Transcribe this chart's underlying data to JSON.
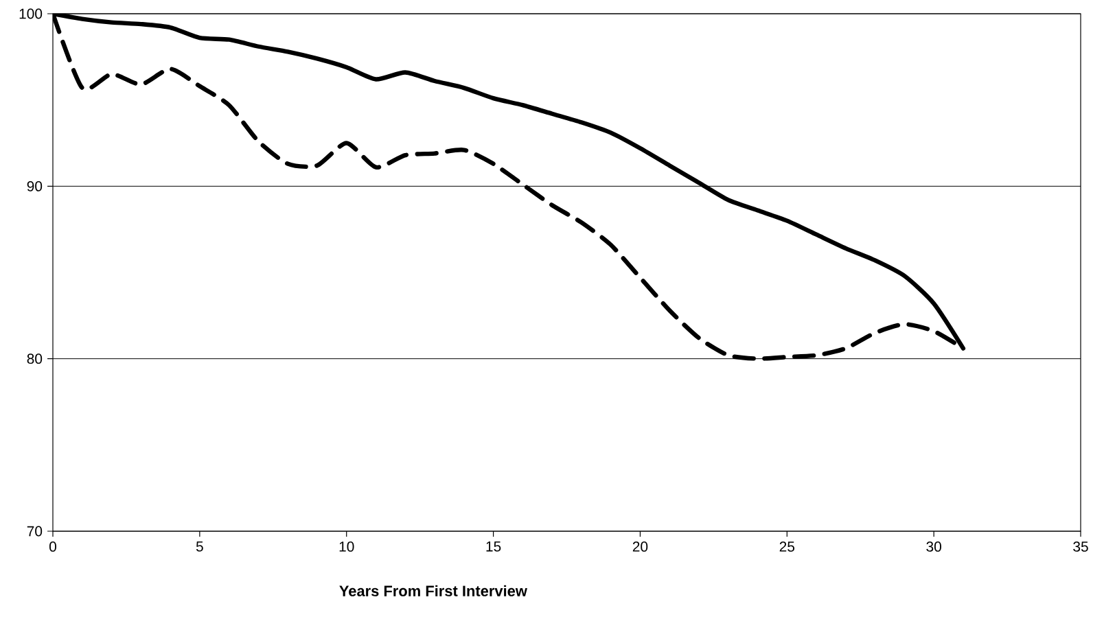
{
  "chart_data": {
    "type": "line",
    "xlabel": "Years From First Interview",
    "x": [
      0,
      1,
      2,
      3,
      4,
      5,
      6,
      7,
      8,
      9,
      10,
      11,
      12,
      13,
      14,
      15,
      16,
      17,
      18,
      19,
      20,
      21,
      22,
      23,
      24,
      25,
      26,
      27,
      28,
      29,
      30,
      31
    ],
    "series": [
      {
        "color": "#000000",
        "line_style": "solid",
        "values": [
          100,
          99.7,
          99.5,
          99.4,
          99.2,
          98.6,
          98.5,
          98.1,
          97.8,
          97.4,
          96.9,
          96.2,
          96.6,
          96.1,
          95.7,
          95.1,
          94.7,
          94.2,
          93.7,
          93.1,
          92.2,
          91.2,
          90.2,
          89.2,
          88.6,
          88.0,
          87.2,
          86.4,
          85.7,
          84.8,
          83.2,
          80.6
        ]
      },
      {
        "color": "#000000",
        "line_style": "dashed",
        "values": [
          100,
          95.7,
          96.5,
          95.9,
          96.8,
          95.8,
          94.7,
          92.6,
          91.3,
          91.2,
          92.5,
          91.1,
          91.8,
          91.9,
          92.1,
          91.3,
          90.1,
          88.9,
          87.9,
          86.6,
          84.7,
          82.8,
          81.2,
          80.2,
          80.0,
          80.1,
          80.2,
          80.6,
          81.5,
          82.0,
          81.6,
          80.6
        ]
      }
    ],
    "xlim": [
      0,
      35
    ],
    "ylim": [
      70,
      100
    ],
    "xticks": [
      0,
      5,
      10,
      15,
      20,
      25,
      30,
      35
    ],
    "yticks": [
      70,
      80,
      90,
      100
    ],
    "grid": "y",
    "marker": "none"
  }
}
